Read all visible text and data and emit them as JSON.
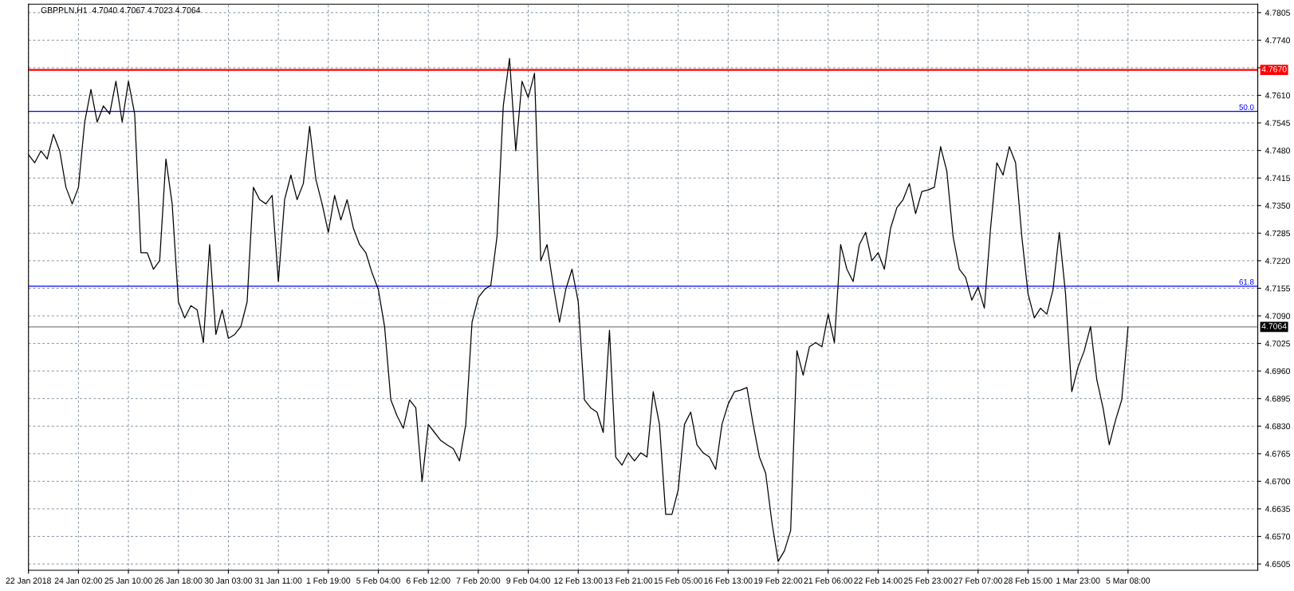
{
  "chart_data": {
    "type": "line",
    "annotations": [
      "GBPPLN,H1  4.7040 4.7067 4.7023 4.7064",
      {
        "text": "50.0",
        "y": 4.7572
      },
      {
        "text": "61.8",
        "y": 4.716
      }
    ],
    "categories": [
      "22 Jan 2018",
      null,
      null,
      null,
      null,
      null,
      null,
      null,
      "24 Jan 02:00",
      null,
      null,
      null,
      null,
      null,
      null,
      null,
      "25 Jan 10:00",
      null,
      null,
      null,
      null,
      null,
      null,
      null,
      "26 Jan 18:00",
      null,
      null,
      null,
      null,
      null,
      null,
      null,
      "30 Jan 03:00",
      null,
      null,
      null,
      null,
      null,
      null,
      null,
      "31 Jan 11:00",
      null,
      null,
      null,
      null,
      null,
      null,
      null,
      "1 Feb 19:00",
      null,
      null,
      null,
      null,
      null,
      null,
      null,
      "5 Feb 04:00",
      null,
      null,
      null,
      null,
      null,
      null,
      null,
      "6 Feb 12:00",
      null,
      null,
      null,
      null,
      null,
      null,
      null,
      "7 Feb 20:00",
      null,
      null,
      null,
      null,
      null,
      null,
      null,
      "9 Feb 04:00",
      null,
      null,
      null,
      null,
      null,
      null,
      null,
      "12 Feb 13:00",
      null,
      null,
      null,
      null,
      null,
      null,
      null,
      "13 Feb 21:00",
      null,
      null,
      null,
      null,
      null,
      null,
      null,
      "15 Feb 05:00",
      null,
      null,
      null,
      null,
      null,
      null,
      null,
      "16 Feb 13:00",
      null,
      null,
      null,
      null,
      null,
      null,
      null,
      "19 Feb 22:00",
      null,
      null,
      null,
      null,
      null,
      null,
      null,
      "21 Feb 06:00",
      null,
      null,
      null,
      null,
      null,
      null,
      null,
      "22 Feb 14:00",
      null,
      null,
      null,
      null,
      null,
      null,
      null,
      "25 Feb 23:00",
      null,
      null,
      null,
      null,
      null,
      null,
      null,
      "27 Feb 07:00",
      null,
      null,
      null,
      null,
      null,
      null,
      null,
      "28 Feb 15:00",
      null,
      null,
      null,
      null,
      null,
      null,
      null,
      "1 Mar 23:00",
      null,
      null,
      null,
      null,
      null,
      null,
      null,
      "5 Mar 08:00"
    ],
    "series": [
      {
        "color": "#000000",
        "values": [
          4.747,
          4.7451,
          4.7479,
          4.746,
          4.7518,
          4.7479,
          4.7393,
          4.7354,
          4.7393,
          4.7547,
          4.7624,
          4.7547,
          4.7585,
          4.7566,
          4.7643,
          4.7547,
          4.7643,
          4.7566,
          4.7239,
          4.7239,
          4.72,
          4.722,
          4.746,
          4.7354,
          4.7123,
          4.7085,
          4.7114,
          4.7104,
          4.7027,
          4.7258,
          4.7046,
          4.7104,
          4.7037,
          4.7046,
          4.7065,
          4.7123,
          4.7393,
          4.7364,
          4.7354,
          4.7374,
          4.7171,
          4.7364,
          4.7422,
          4.7364,
          4.7402,
          4.7537,
          4.7412,
          4.7354,
          4.7287,
          4.7374,
          4.7316,
          4.7364,
          4.7297,
          4.7258,
          4.7239,
          4.7191,
          4.7152,
          4.7065,
          4.6892,
          4.6854,
          4.6825,
          4.6892,
          4.6873,
          4.6699,
          4.6834,
          4.6815,
          4.6796,
          4.6786,
          4.6777,
          4.6748,
          4.6834,
          4.7075,
          4.7133,
          4.7152,
          4.7162,
          4.7277,
          4.7585,
          4.7697,
          4.7479,
          4.7643,
          4.7605,
          4.7662,
          4.722,
          4.7258,
          4.7162,
          4.7075,
          4.7152,
          4.72,
          4.7123,
          4.6892,
          4.6873,
          4.6863,
          4.6815,
          4.7056,
          4.6757,
          4.6738,
          4.6767,
          4.6748,
          4.6767,
          4.6757,
          4.6911,
          4.6834,
          4.6622,
          4.6622,
          4.668,
          4.6834,
          4.6863,
          4.6786,
          4.6767,
          4.6757,
          4.6728,
          4.6834,
          4.6882,
          4.6911,
          4.6915,
          4.6921,
          4.6834,
          4.6757,
          4.6719,
          4.6603,
          4.6511,
          4.6536,
          4.6584,
          4.7008,
          4.695,
          4.7017,
          4.7027,
          4.7017,
          4.7094,
          4.7027,
          4.7258,
          4.72,
          4.7171,
          4.7258,
          4.7287,
          4.722,
          4.7239,
          4.72,
          4.7297,
          4.7345,
          4.7364,
          4.7402,
          4.7331,
          4.7383,
          4.7387,
          4.7393,
          4.7489,
          4.7431,
          4.7277,
          4.72,
          4.7181,
          4.7127,
          4.7158,
          4.7108,
          4.7297,
          4.7451,
          4.7422,
          4.7489,
          4.7451,
          4.7277,
          4.7142,
          4.7085,
          4.7108,
          4.7094,
          4.7152,
          4.7287,
          4.7142,
          4.6911,
          4.6969,
          4.7008,
          4.7065,
          4.694,
          4.6873,
          4.6786,
          4.6844,
          4.6892,
          4.7064
        ]
      }
    ],
    "ylim": [
      4.649,
      4.7825
    ],
    "yticks": [
      "4.6505",
      "4.6570",
      "4.6635",
      "4.6700",
      "4.6765",
      "4.6830",
      "4.6895",
      "4.6960",
      "4.7025",
      "4.7090",
      "4.7155",
      "4.7220",
      "4.7285",
      "4.7350",
      "4.7415",
      "4.7480",
      "4.7545",
      "4.7610",
      {
        "value": 4.7675,
        "label": null
      },
      "4.7740",
      "4.7805"
    ],
    "ref_lines": [
      {
        "axis": "y",
        "value": 4.767,
        "label": "4.7670",
        "color": "#ff0000"
      },
      {
        "axis": "y",
        "value": 4.7572,
        "color": "#0000ff"
      },
      {
        "axis": "y",
        "value": 4.716,
        "color": "#0000ff"
      },
      {
        "axis": "y",
        "value": 4.7064,
        "label": "4.7064",
        "color": "#808080"
      }
    ],
    "grid": true,
    "legend": false,
    "marker": "none",
    "line_style": "solid"
  }
}
